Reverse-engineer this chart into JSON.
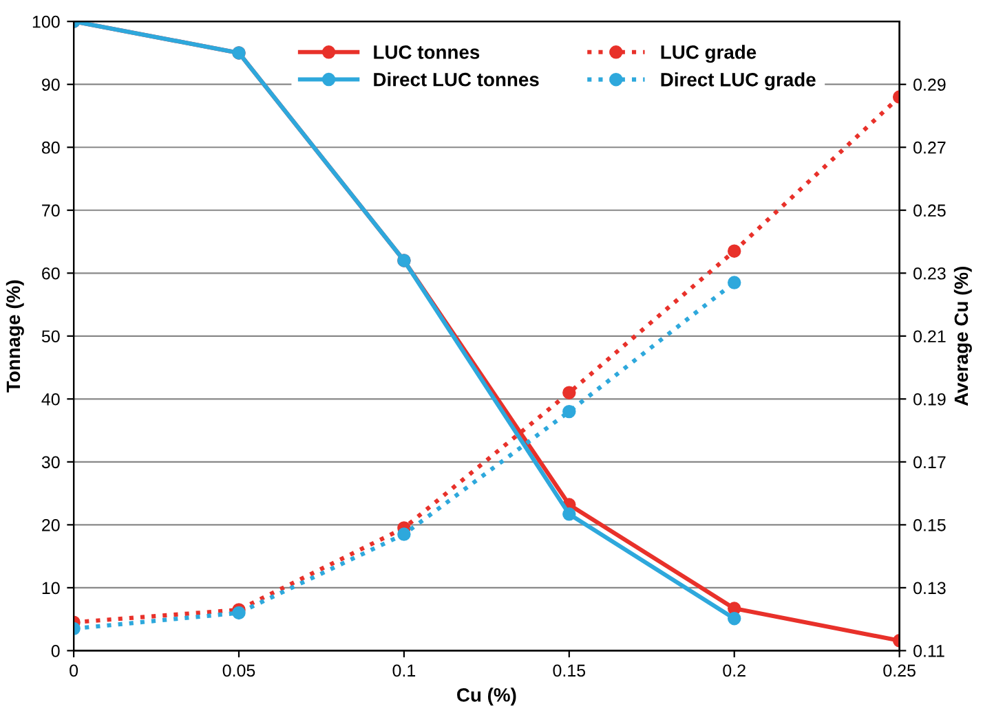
{
  "chart_data": {
    "type": "line",
    "xlabel": "Cu (%)",
    "ylabel": "Tonnage (%)",
    "y2label": "Average Cu (%)",
    "x": [
      0,
      0.05,
      0.1,
      0.15,
      0.2,
      0.25
    ],
    "series": [
      {
        "name": "LUC tonnes",
        "color": "#e8312a",
        "line_style": "solid",
        "values": [
          100,
          95,
          62,
          23.2,
          6.7,
          1.6
        ]
      },
      {
        "name": "Direct LUC tonnes",
        "color": "#2ea8dc",
        "line_style": "solid",
        "values": [
          100,
          95,
          62,
          21.7,
          5.1,
          null
        ]
      },
      {
        "name": "LUC grade",
        "color": "#e8312a",
        "line_style": "dotted",
        "axis": "y2",
        "values": [
          0.119,
          0.123,
          0.149,
          0.192,
          0.237,
          0.286
        ]
      },
      {
        "name": "Direct LUC grade",
        "color": "#2ea8dc",
        "line_style": "dotted",
        "axis": "y2",
        "values": [
          0.117,
          0.122,
          0.147,
          0.186,
          0.227,
          null
        ]
      }
    ],
    "marker": "circle",
    "xlim": [
      0,
      0.25
    ],
    "xticks": [
      0,
      0.05,
      0.1,
      0.15,
      0.2,
      0.25
    ],
    "ylim": [
      0,
      100
    ],
    "yticks": [
      0,
      10,
      20,
      30,
      40,
      50,
      60,
      70,
      80,
      90,
      100
    ],
    "y2lim": [
      0.11,
      0.31
    ],
    "y2ticks": [
      0.11,
      0.13,
      0.15,
      0.17,
      0.19,
      0.21,
      0.23,
      0.25,
      0.27,
      0.29
    ],
    "grid": "y",
    "legend": "top right"
  }
}
